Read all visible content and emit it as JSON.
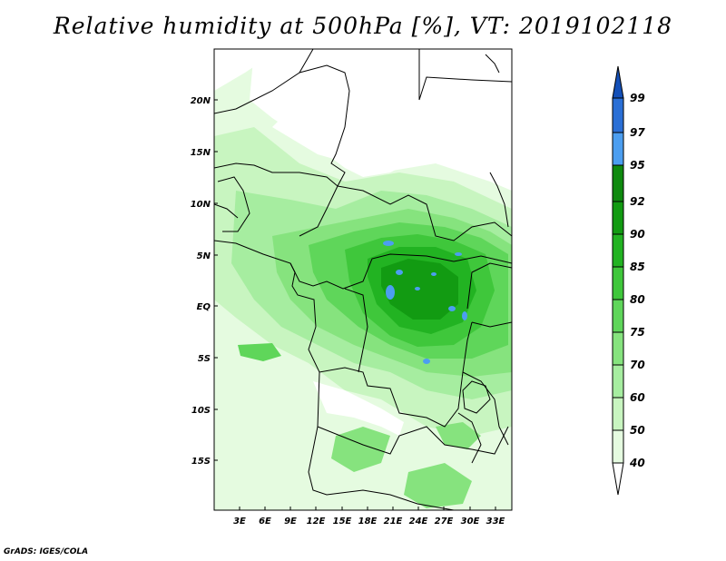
{
  "title": "Relative humidity at 500hPa [%], VT: 2019102118",
  "credit": "GrADS: IGES/COLA",
  "map": {
    "lat_labels": [
      "20N",
      "15N",
      "10N",
      "5N",
      "EQ",
      "5S",
      "10S",
      "15S"
    ],
    "lon_labels": [
      "3E",
      "6E",
      "9E",
      "12E",
      "15E",
      "18E",
      "21E",
      "24E",
      "27E",
      "30E",
      "33E"
    ]
  },
  "colorbar": {
    "levels": [
      "40",
      "50",
      "60",
      "70",
      "75",
      "80",
      "85",
      "90",
      "92",
      "95",
      "97",
      "99"
    ],
    "colors": [
      "#ffffff",
      "#e5fbe0",
      "#c8f5c0",
      "#a6eda0",
      "#86e37e",
      "#5fd65a",
      "#3fc73b",
      "#22b322",
      "#129b12",
      "#0f8a0f",
      "#4c9ef0",
      "#2a6fd6",
      "#1450b8"
    ]
  }
}
